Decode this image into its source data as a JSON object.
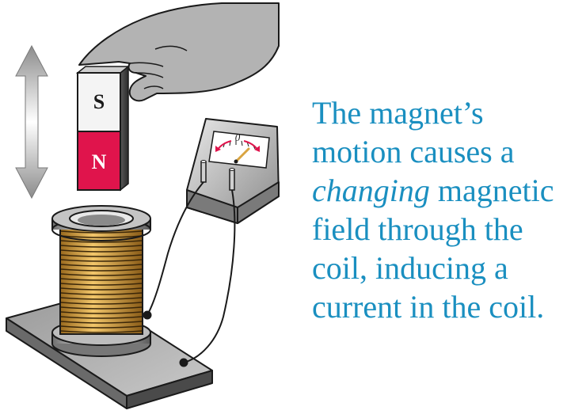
{
  "magnet": {
    "top_pole": "S",
    "bottom_pole": "N",
    "top_color": "#f4f4f4",
    "bottom_color": "#e0144c"
  },
  "meter": {
    "zero_label": "0"
  },
  "caption": {
    "line1": "The magnet’s",
    "line2": "motion causes a",
    "line3_em": "changing",
    "line3_rest": " magnetic",
    "line4": "field through the",
    "line5": "coil, inducing a",
    "line6": "current in the coil."
  },
  "colors": {
    "caption": "#1a8fc0",
    "hand": "#b3b3b3",
    "coil": "#d9a441",
    "arrow_needle": "#e0144c"
  }
}
